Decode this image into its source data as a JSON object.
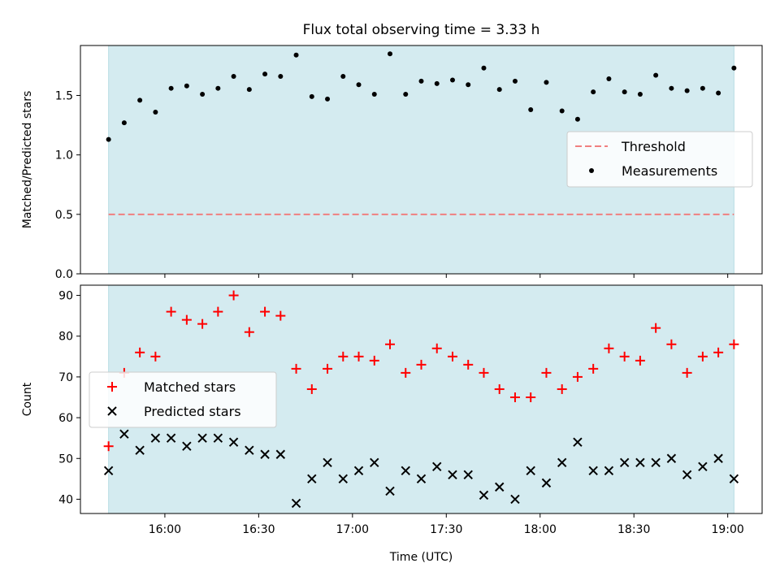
{
  "chart_data": [
    {
      "type": "scatter",
      "title": "Flux total observing time = 3.33 h",
      "xlabel": "",
      "ylabel": "Matched/Predicted stars",
      "ylim": [
        0,
        1.92
      ],
      "yticks": [
        "0.0",
        "0.5",
        "1.0",
        "1.5"
      ],
      "shaded_span": [
        "15:42",
        "19:02"
      ],
      "legend_position": "center-right",
      "threshold": {
        "name": "Threshold",
        "value": 0.5,
        "color": "#f08080",
        "style": "dashed"
      },
      "series": [
        {
          "name": "Measurements",
          "marker": "dot",
          "color": "#000000",
          "x": [
            "15:42",
            "15:47",
            "15:52",
            "15:57",
            "16:02",
            "16:07",
            "16:12",
            "16:17",
            "16:22",
            "16:27",
            "16:32",
            "16:37",
            "16:42",
            "16:47",
            "16:52",
            "16:57",
            "17:02",
            "17:07",
            "17:12",
            "17:17",
            "17:22",
            "17:27",
            "17:32",
            "17:37",
            "17:42",
            "17:47",
            "17:52",
            "17:57",
            "18:02",
            "18:07",
            "18:12",
            "18:17",
            "18:22",
            "18:27",
            "18:32",
            "18:37",
            "18:42",
            "18:47",
            "18:52",
            "18:57",
            "19:02"
          ],
          "y": [
            1.13,
            1.27,
            1.46,
            1.36,
            1.56,
            1.58,
            1.51,
            1.56,
            1.66,
            1.55,
            1.68,
            1.66,
            1.84,
            1.49,
            1.47,
            1.66,
            1.59,
            1.51,
            1.85,
            1.51,
            1.62,
            1.6,
            1.63,
            1.59,
            1.73,
            1.55,
            1.62,
            1.38,
            1.61,
            1.37,
            1.3,
            1.53,
            1.64,
            1.53,
            1.51,
            1.67,
            1.56,
            1.54,
            1.56,
            1.52,
            1.73
          ]
        }
      ]
    },
    {
      "type": "scatter",
      "title": "",
      "xlabel": "Time (UTC)",
      "ylabel": "Count",
      "ylim": [
        36.5,
        92.5
      ],
      "yticks": [
        "40",
        "50",
        "60",
        "70",
        "80",
        "90"
      ],
      "xticks": [
        "16:00",
        "16:30",
        "17:00",
        "17:30",
        "18:00",
        "18:30",
        "19:00"
      ],
      "shaded_span": [
        "15:42",
        "19:02"
      ],
      "legend_position": "center-left",
      "series": [
        {
          "name": "Matched stars",
          "marker": "plus",
          "color": "#ff0000",
          "x": [
            "15:42",
            "15:47",
            "15:52",
            "15:57",
            "16:02",
            "16:07",
            "16:12",
            "16:17",
            "16:22",
            "16:27",
            "16:32",
            "16:37",
            "16:42",
            "16:47",
            "16:52",
            "16:57",
            "17:02",
            "17:07",
            "17:12",
            "17:17",
            "17:22",
            "17:27",
            "17:32",
            "17:37",
            "17:42",
            "17:47",
            "17:52",
            "17:57",
            "18:02",
            "18:07",
            "18:12",
            "18:17",
            "18:22",
            "18:27",
            "18:32",
            "18:37",
            "18:42",
            "18:47",
            "18:52",
            "18:57",
            "19:02"
          ],
          "y": [
            53,
            71,
            76,
            75,
            86,
            84,
            83,
            86,
            90,
            81,
            86,
            85,
            72,
            67,
            72,
            75,
            75,
            74,
            78,
            71,
            73,
            77,
            75,
            73,
            71,
            67,
            65,
            65,
            71,
            67,
            70,
            72,
            77,
            75,
            74,
            82,
            78,
            71,
            75,
            76,
            78
          ]
        },
        {
          "name": "Predicted stars",
          "marker": "x",
          "color": "#000000",
          "x": [
            "15:42",
            "15:47",
            "15:52",
            "15:57",
            "16:02",
            "16:07",
            "16:12",
            "16:17",
            "16:22",
            "16:27",
            "16:32",
            "16:37",
            "16:42",
            "16:47",
            "16:52",
            "16:57",
            "17:02",
            "17:07",
            "17:12",
            "17:17",
            "17:22",
            "17:27",
            "17:32",
            "17:37",
            "17:42",
            "17:47",
            "17:52",
            "17:57",
            "18:02",
            "18:07",
            "18:12",
            "18:17",
            "18:22",
            "18:27",
            "18:32",
            "18:37",
            "18:42",
            "18:47",
            "18:52",
            "18:57",
            "19:02"
          ],
          "y": [
            47,
            56,
            52,
            55,
            55,
            53,
            55,
            55,
            54,
            52,
            51,
            51,
            39,
            45,
            49,
            45,
            47,
            49,
            42,
            47,
            45,
            48,
            46,
            46,
            41,
            43,
            40,
            47,
            44,
            49,
            54,
            47,
            47,
            49,
            49,
            49,
            50,
            46,
            48,
            50,
            45
          ]
        }
      ]
    }
  ],
  "colors": {
    "shade": "#d4ebf0",
    "shade_edge": "#b9dde4"
  }
}
